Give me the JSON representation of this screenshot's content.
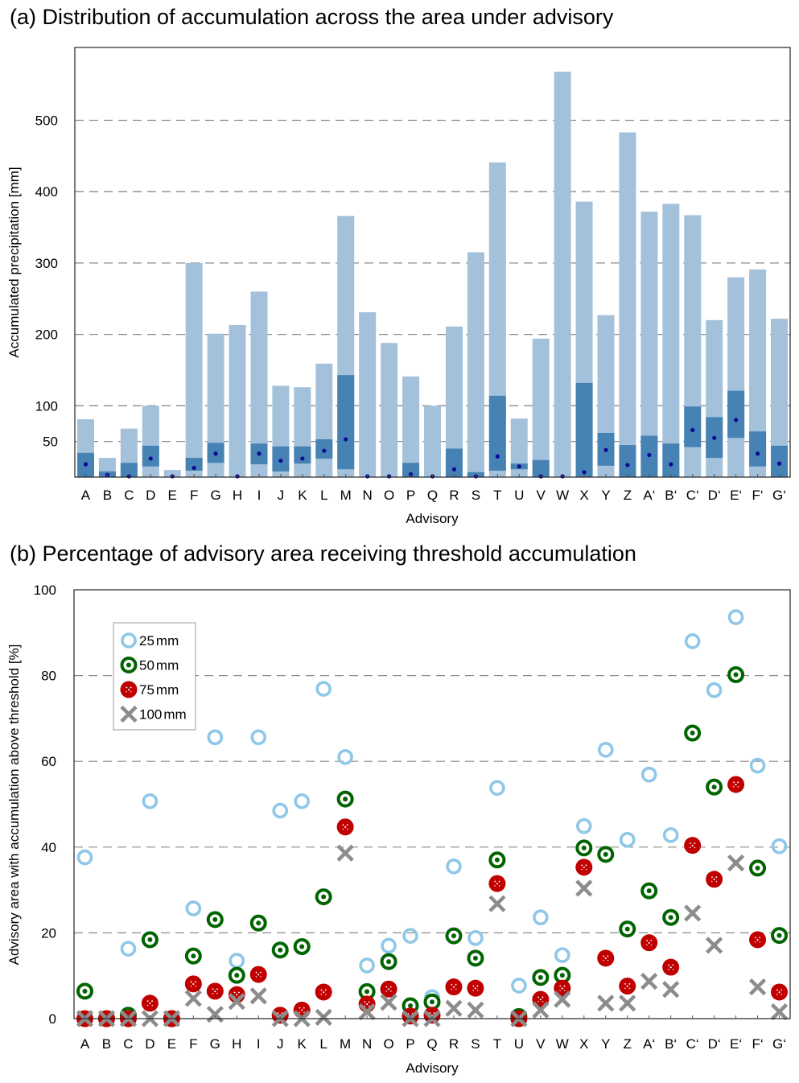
{
  "chart_data": [
    {
      "panel": "a",
      "type": "bar",
      "title": "(a) Distribution of accumulation across the area under advisory",
      "xlabel": "Advisory",
      "ylabel": "Accumulated precipitation [mm]",
      "ylim": [
        0,
        602
      ],
      "yticks": [
        50,
        100,
        200,
        300,
        400,
        500
      ],
      "grid": "horizontal-dashed",
      "categories": [
        "A",
        "B",
        "C",
        "D",
        "E",
        "F",
        "G",
        "H",
        "I",
        "J",
        "K",
        "L",
        "M",
        "N",
        "O",
        "P",
        "Q",
        "R",
        "S",
        "T",
        "U",
        "V",
        "W",
        "X",
        "Y",
        "Z",
        "A‘",
        "B‘",
        "C‘",
        "D‘",
        "E‘",
        "F‘",
        "G‘"
      ],
      "series": [
        {
          "name": "max",
          "role": "light-bar",
          "color": "#A3C1DB",
          "values": [
            81,
            27,
            68,
            100,
            10,
            300,
            201,
            213,
            260,
            128,
            126,
            159,
            366,
            231,
            188,
            141,
            100,
            211,
            315,
            441,
            82,
            194,
            568,
            386,
            227,
            483,
            372,
            383,
            367,
            220,
            280,
            291,
            222
          ]
        },
        {
          "name": "upper",
          "role": "dark-bar-top",
          "color": "#4682B4",
          "values": [
            34,
            8,
            20,
            44,
            0,
            27,
            48,
            0,
            47,
            43,
            43,
            53,
            143,
            0,
            0,
            20,
            0,
            40,
            7,
            114,
            19,
            24,
            0,
            132,
            62,
            45,
            58,
            47,
            99,
            84,
            121,
            64,
            44
          ]
        },
        {
          "name": "lower",
          "role": "dark-bar-bottom",
          "values": [
            0,
            0,
            0,
            15,
            0,
            9,
            20,
            0,
            18,
            8,
            19,
            26,
            11,
            0,
            0,
            0,
            0,
            0,
            0,
            9,
            11,
            0,
            0,
            0,
            16,
            0,
            0,
            0,
            42,
            27,
            55,
            15,
            0
          ]
        },
        {
          "name": "median",
          "role": "dot",
          "color": "#0A0A96",
          "values": [
            18,
            3,
            0,
            26,
            0,
            13,
            33,
            0,
            33,
            23,
            26,
            37,
            53,
            0,
            0,
            4,
            0,
            11,
            0,
            29,
            15,
            0,
            0,
            7,
            38,
            17,
            31,
            18,
            66,
            55,
            80,
            33,
            19
          ]
        }
      ]
    },
    {
      "panel": "b",
      "type": "scatter",
      "title": "(b) Percentage of advisory area receiving threshold accumulation",
      "xlabel": "Advisory",
      "ylabel": "Advisory area with accumulation above threshold [%]",
      "ylim": [
        0,
        100
      ],
      "yticks": [
        0,
        20,
        40,
        60,
        80,
        100
      ],
      "grid": "horizontal-dashed",
      "legend_position": "top-left",
      "categories": [
        "A",
        "B",
        "C",
        "D",
        "E",
        "F",
        "G",
        "H",
        "I",
        "J",
        "K",
        "L",
        "M",
        "N",
        "O",
        "P",
        "Q",
        "R",
        "S",
        "T",
        "U",
        "V",
        "W",
        "X",
        "Y",
        "Z",
        "A‘",
        "B‘",
        "C‘",
        "D‘",
        "E‘",
        "F‘",
        "G‘"
      ],
      "series": [
        {
          "name": "25 mm",
          "marker": "ring",
          "color": "#8EC7E8",
          "values": [
            37.6,
            0,
            16.3,
            50.7,
            0,
            25.7,
            65.6,
            13.5,
            65.6,
            48.5,
            50.7,
            76.9,
            61,
            12.4,
            17,
            19.3,
            5,
            35.5,
            18.8,
            53.8,
            7.7,
            23.6,
            14.8,
            44.9,
            62.7,
            41.7,
            56.9,
            42.8,
            88,
            76.6,
            93.6,
            59,
            40.2
          ]
        },
        {
          "name": "50 mm",
          "marker": "bullseye",
          "color": "#006400",
          "values": [
            6.4,
            0,
            0.8,
            18.4,
            0,
            14.6,
            23.1,
            10.1,
            22.3,
            16,
            16.8,
            28.4,
            51.2,
            6.3,
            13.3,
            3,
            3.9,
            19.3,
            14.1,
            37,
            0.5,
            9.6,
            10.1,
            39.8,
            38.3,
            20.9,
            29.8,
            23.6,
            66.6,
            54,
            80.2,
            35.1,
            19.4
          ]
        },
        {
          "name": "75 mm",
          "marker": "circled-x",
          "color": "#C00000",
          "values": [
            0,
            0,
            0,
            3.6,
            0,
            8.1,
            6.4,
            5.6,
            10.3,
            0.8,
            2,
            6.2,
            44.7,
            3.4,
            6.9,
            0.6,
            0.8,
            7.4,
            7.1,
            31.5,
            0,
            4.5,
            7.1,
            35.3,
            14.1,
            7.6,
            17.7,
            12,
            40.4,
            32.5,
            54.6,
            18.4,
            6.2
          ]
        },
        {
          "name": "100 mm",
          "marker": "x",
          "color": "#8C8C8C",
          "values": [
            0,
            0,
            0,
            0,
            0,
            4.7,
            1,
            4,
            5.3,
            0,
            0,
            0.3,
            38.6,
            1.6,
            3.8,
            0,
            0,
            2.4,
            2,
            26.8,
            0,
            2,
            4.5,
            30.4,
            3.6,
            3.6,
            8.7,
            6.8,
            24.6,
            17.1,
            36.3,
            7.4,
            1.6
          ]
        }
      ],
      "legend": [
        {
          "label_num": "25",
          "label_unit": "mm"
        },
        {
          "label_num": "50",
          "label_unit": "mm"
        },
        {
          "label_num": "75",
          "label_unit": "mm"
        },
        {
          "label_num": "100",
          "label_unit": "mm"
        }
      ]
    }
  ]
}
